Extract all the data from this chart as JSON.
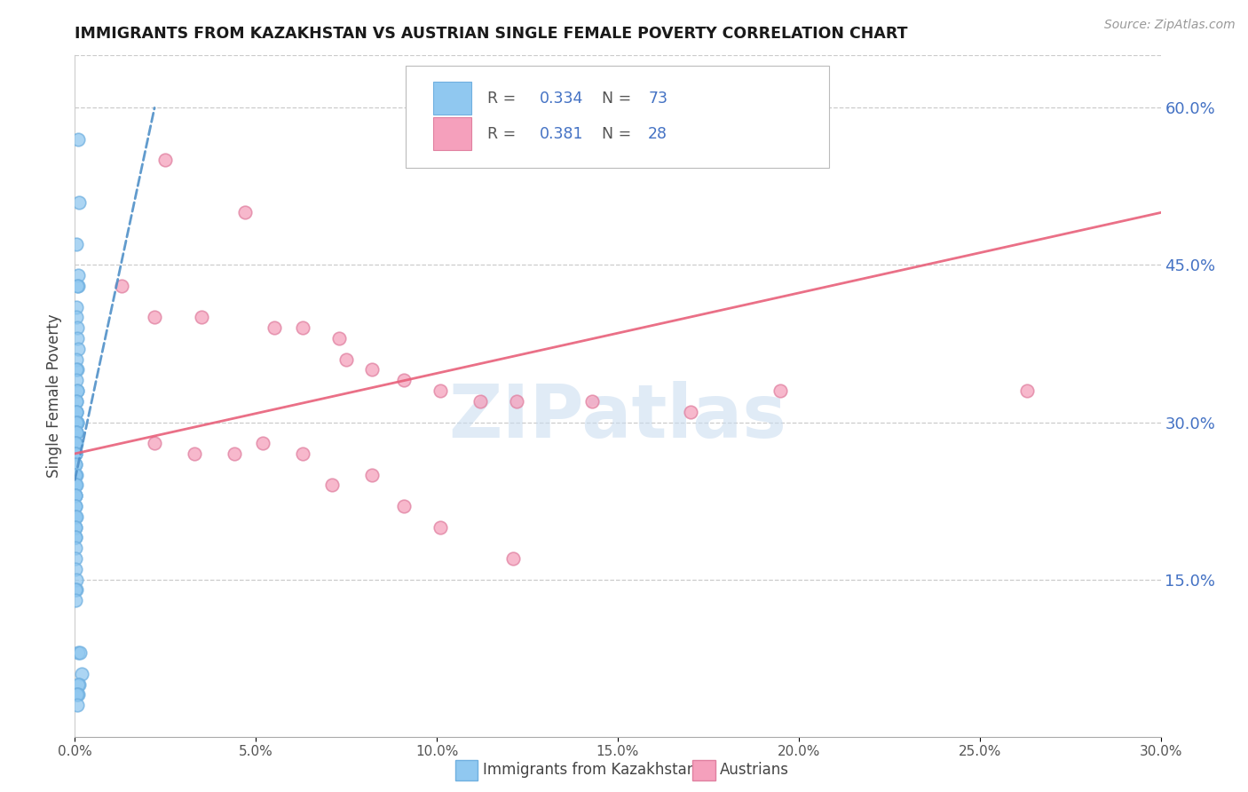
{
  "title": "IMMIGRANTS FROM KAZAKHSTAN VS AUSTRIAN SINGLE FEMALE POVERTY CORRELATION CHART",
  "source": "Source: ZipAtlas.com",
  "ylabel": "Single Female Poverty",
  "right_yticks": [
    0.15,
    0.3,
    0.45,
    0.6
  ],
  "right_yticklabels": [
    "15.0%",
    "30.0%",
    "45.0%",
    "60.0%"
  ],
  "xlim": [
    0.0,
    0.3
  ],
  "ylim": [
    0.0,
    0.65
  ],
  "legend_r1": "R = ",
  "legend_v1": "0.334",
  "legend_n1": "  N = ",
  "legend_nv1": "73",
  "legend_r2": "R = ",
  "legend_v2": "0.381",
  "legend_n2": "  N = ",
  "legend_nv2": "28",
  "watermark": "ZIPatlas",
  "blue_color": "#90C8F0",
  "pink_color": "#F5A0BC",
  "blue_edge_color": "#70B0E0",
  "pink_edge_color": "#E080A0",
  "blue_line_color": "#5090C8",
  "pink_line_color": "#E8607A",
  "title_color": "#1a1a1a",
  "right_tick_color": "#4472C4",
  "source_color": "#999999",
  "legend_text_color": "#333333",
  "legend_val_color": "#4472C4",
  "blue_scatter_x": [
    0.0008,
    0.0012,
    0.0005,
    0.0008,
    0.001,
    0.0006,
    0.0004,
    0.0005,
    0.0006,
    0.0007,
    0.0008,
    0.0005,
    0.0006,
    0.0004,
    0.0005,
    0.0006,
    0.0007,
    0.0004,
    0.0005,
    0.0003,
    0.0004,
    0.0005,
    0.0006,
    0.0007,
    0.0003,
    0.0004,
    0.0003,
    0.0003,
    0.0004,
    0.0005,
    0.0002,
    0.0003,
    0.0002,
    0.0002,
    0.0002,
    0.0002,
    0.0002,
    0.0002,
    0.0002,
    0.0003,
    0.0002,
    0.0002,
    0.0002,
    0.0002,
    0.0003,
    0.0002,
    0.0002,
    0.0002,
    0.0001,
    0.0001,
    0.0001,
    0.0001,
    0.0003,
    0.0001,
    0.0001,
    0.0001,
    0.0001,
    0.0001,
    0.0001,
    0.0001,
    0.0005,
    0.0004,
    0.0002,
    0.0002,
    0.001,
    0.0014,
    0.0018,
    0.0012,
    0.0009,
    0.0008,
    0.0005,
    0.0006,
    0.0007
  ],
  "blue_scatter_y": [
    0.57,
    0.51,
    0.47,
    0.44,
    0.43,
    0.43,
    0.41,
    0.4,
    0.39,
    0.38,
    0.37,
    0.36,
    0.35,
    0.35,
    0.34,
    0.33,
    0.33,
    0.32,
    0.32,
    0.31,
    0.31,
    0.31,
    0.3,
    0.3,
    0.3,
    0.3,
    0.29,
    0.29,
    0.29,
    0.29,
    0.28,
    0.28,
    0.28,
    0.27,
    0.27,
    0.27,
    0.26,
    0.26,
    0.25,
    0.25,
    0.25,
    0.24,
    0.24,
    0.24,
    0.24,
    0.23,
    0.23,
    0.23,
    0.22,
    0.22,
    0.21,
    0.21,
    0.21,
    0.2,
    0.2,
    0.19,
    0.19,
    0.18,
    0.17,
    0.16,
    0.15,
    0.14,
    0.14,
    0.13,
    0.08,
    0.08,
    0.06,
    0.05,
    0.05,
    0.04,
    0.04,
    0.04,
    0.03
  ],
  "pink_scatter_x": [
    0.025,
    0.047,
    0.013,
    0.022,
    0.035,
    0.055,
    0.063,
    0.073,
    0.075,
    0.082,
    0.091,
    0.101,
    0.112,
    0.122,
    0.143,
    0.17,
    0.195,
    0.022,
    0.033,
    0.044,
    0.052,
    0.063,
    0.071,
    0.082,
    0.091,
    0.101,
    0.263,
    0.121
  ],
  "pink_scatter_y": [
    0.55,
    0.5,
    0.43,
    0.4,
    0.4,
    0.39,
    0.39,
    0.38,
    0.36,
    0.35,
    0.34,
    0.33,
    0.32,
    0.32,
    0.32,
    0.31,
    0.33,
    0.28,
    0.27,
    0.27,
    0.28,
    0.27,
    0.24,
    0.25,
    0.22,
    0.2,
    0.33,
    0.17
  ],
  "blue_line_x": [
    0.0,
    0.022
  ],
  "blue_line_y": [
    0.245,
    0.6
  ],
  "pink_line_x": [
    0.0,
    0.3
  ],
  "pink_line_y": [
    0.27,
    0.5
  ]
}
